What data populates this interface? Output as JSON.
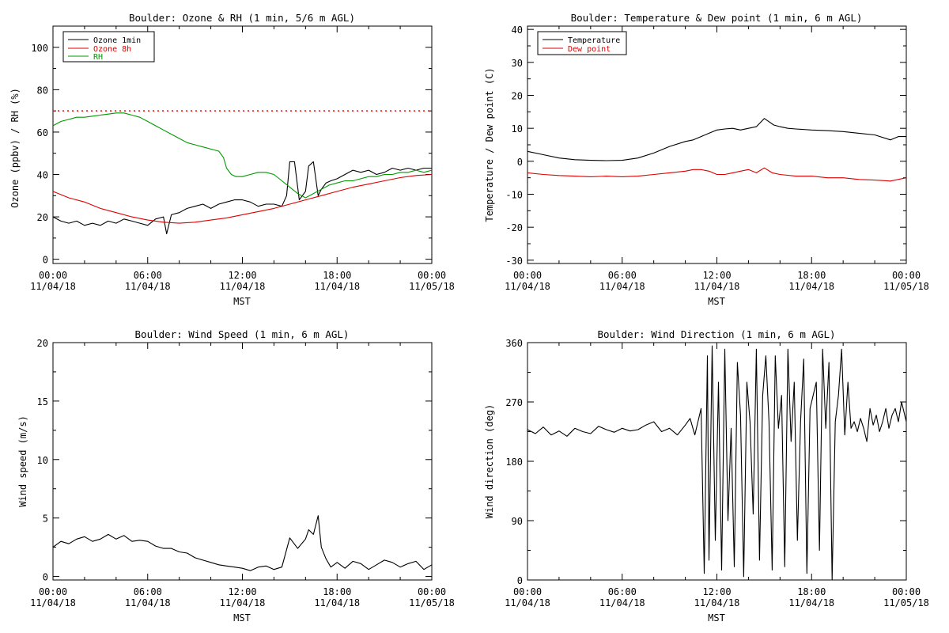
{
  "chart_data": [
    {
      "type": "line",
      "title": "Boulder: Ozone & RH (1 min, 5/6 m AGL)",
      "xlabel": "MST",
      "ylabel": "Ozone (ppbv) / RH (%)",
      "xlim": [
        0,
        24
      ],
      "ylim": [
        -2,
        110
      ],
      "yticks": [
        0,
        20,
        40,
        60,
        80,
        100
      ],
      "xticks": [
        0,
        6,
        12,
        18,
        24
      ],
      "xtick_labels": [
        [
          "00:00",
          "11/04/18"
        ],
        [
          "06:00",
          "11/04/18"
        ],
        [
          "12:00",
          "11/04/18"
        ],
        [
          "18:00",
          "11/04/18"
        ],
        [
          "00:00",
          "11/05/18"
        ]
      ],
      "legend": "top-left",
      "reference_line": {
        "y": 70,
        "color": "#ff0000",
        "style": "dotted"
      },
      "series": [
        {
          "name": "Ozone 1min",
          "color": "#000000",
          "x": [
            0,
            0.5,
            1,
            1.5,
            2,
            2.5,
            3,
            3.5,
            4,
            4.5,
            5,
            5.5,
            6,
            6.5,
            7,
            7.2,
            7.5,
            8,
            8.5,
            9,
            9.5,
            10,
            10.5,
            11,
            11.5,
            12,
            12.5,
            13,
            13.5,
            14,
            14.5,
            14.8,
            15,
            15.3,
            15.6,
            16,
            16.2,
            16.5,
            16.8,
            17,
            17.3,
            17.6,
            18,
            18.5,
            19,
            19.5,
            20,
            20.5,
            21,
            21.5,
            22,
            22.5,
            23,
            23.5,
            24
          ],
          "y": [
            20,
            18,
            17,
            18,
            16,
            17,
            16,
            18,
            17,
            19,
            18,
            17,
            16,
            19,
            20,
            12,
            21,
            22,
            24,
            25,
            26,
            24,
            26,
            27,
            28,
            28,
            27,
            25,
            26,
            26,
            25,
            30,
            46,
            46,
            28,
            32,
            44,
            46,
            30,
            33,
            36,
            37,
            38,
            40,
            42,
            41,
            42,
            40,
            41,
            43,
            42,
            43,
            42,
            43,
            43
          ]
        },
        {
          "name": "Ozone 8h",
          "color": "#dd0000",
          "x": [
            0,
            1,
            2,
            3,
            4,
            5,
            6,
            7,
            8,
            9,
            10,
            11,
            12,
            13,
            14,
            15,
            16,
            17,
            18,
            19,
            20,
            21,
            22,
            23,
            24
          ],
          "y": [
            32,
            29,
            27,
            24,
            22,
            20,
            18.5,
            17.5,
            17,
            17.5,
            18.5,
            19.5,
            21,
            22.5,
            24,
            26,
            28,
            30,
            32,
            34,
            35.5,
            37,
            38.5,
            39.5,
            40
          ]
        },
        {
          "name": "RH",
          "color": "#009900",
          "x": [
            0,
            0.5,
            1,
            1.5,
            2,
            2.5,
            3,
            3.5,
            4,
            4.5,
            5,
            5.5,
            6,
            6.5,
            7,
            7.5,
            8,
            8.5,
            9,
            9.5,
            10,
            10.5,
            10.8,
            11,
            11.3,
            11.6,
            12,
            12.5,
            13,
            13.5,
            14,
            14.5,
            15,
            15.5,
            16,
            16.5,
            17,
            17.5,
            18,
            18.5,
            19,
            19.5,
            20,
            20.5,
            21,
            21.5,
            22,
            22.5,
            23,
            23.5,
            24
          ],
          "y": [
            63,
            65,
            66,
            67,
            67,
            67.5,
            68,
            68.5,
            69,
            69,
            68,
            67,
            65,
            63,
            61,
            59,
            57,
            55,
            54,
            53,
            52,
            51,
            48,
            43,
            40,
            39,
            39,
            40,
            41,
            41,
            40,
            37,
            34,
            31,
            29,
            31,
            33,
            35,
            36,
            37,
            37,
            38,
            39,
            39,
            40,
            40,
            41,
            41,
            42,
            41,
            42
          ]
        }
      ]
    },
    {
      "type": "line",
      "title": "Boulder: Temperature & Dew point (1 min, 6 m AGL)",
      "xlabel": "MST",
      "ylabel": "Temperature / Dew point (C)",
      "xlim": [
        0,
        24
      ],
      "ylim": [
        -31,
        41
      ],
      "yticks": [
        -30,
        -20,
        -10,
        0,
        10,
        20,
        30,
        40
      ],
      "xticks": [
        0,
        6,
        12,
        18,
        24
      ],
      "xtick_labels": [
        [
          "00:00",
          "11/04/18"
        ],
        [
          "06:00",
          "11/04/18"
        ],
        [
          "12:00",
          "11/04/18"
        ],
        [
          "18:00",
          "11/04/18"
        ],
        [
          "00:00",
          "11/05/18"
        ]
      ],
      "legend": "top-left",
      "series": [
        {
          "name": "Temperature",
          "color": "#000000",
          "x": [
            0,
            1,
            2,
            3,
            4,
            5,
            6,
            7,
            8,
            9,
            10,
            10.5,
            11,
            11.5,
            12,
            12.5,
            13,
            13.5,
            14,
            14.5,
            15,
            15.3,
            15.6,
            16,
            16.5,
            17,
            18,
            19,
            20,
            21,
            22,
            23,
            23.5,
            24
          ],
          "y": [
            3,
            2,
            1,
            0.5,
            0.3,
            0.2,
            0.3,
            1,
            2.5,
            4.5,
            6,
            6.5,
            7.5,
            8.5,
            9.5,
            9.8,
            10,
            9.5,
            10,
            10.5,
            13,
            12,
            11,
            10.5,
            10,
            9.8,
            9.5,
            9.3,
            9,
            8.5,
            8,
            6.5,
            7.5,
            7.5
          ]
        },
        {
          "name": "Dew point",
          "color": "#dd0000",
          "x": [
            0,
            1,
            2,
            3,
            4,
            5,
            6,
            7,
            8,
            9,
            10,
            10.5,
            11,
            11.5,
            12,
            12.5,
            13,
            13.5,
            14,
            14.5,
            15,
            15.5,
            16,
            17,
            18,
            19,
            20,
            21,
            22,
            23,
            24
          ],
          "y": [
            -3.5,
            -4,
            -4.3,
            -4.5,
            -4.7,
            -4.5,
            -4.7,
            -4.5,
            -4,
            -3.5,
            -3,
            -2.5,
            -2.5,
            -3,
            -4,
            -4,
            -3.5,
            -3,
            -2.5,
            -3.5,
            -2,
            -3.5,
            -4,
            -4.5,
            -4.5,
            -5,
            -5,
            -5.5,
            -5.7,
            -6,
            -5
          ]
        }
      ]
    },
    {
      "type": "line",
      "title": "Boulder: Wind Speed (1 min, 6 m AGL)",
      "xlabel": "MST",
      "ylabel": "Wind speed (m/s)",
      "xlim": [
        0,
        24
      ],
      "ylim": [
        -0.3,
        20
      ],
      "yticks": [
        0,
        5,
        10,
        15,
        20
      ],
      "xticks": [
        0,
        6,
        12,
        18,
        24
      ],
      "xtick_labels": [
        [
          "00:00",
          "11/04/18"
        ],
        [
          "06:00",
          "11/04/18"
        ],
        [
          "12:00",
          "11/04/18"
        ],
        [
          "18:00",
          "11/04/18"
        ],
        [
          "00:00",
          "11/05/18"
        ]
      ],
      "series": [
        {
          "name": "",
          "color": "#000000",
          "x": [
            0,
            0.5,
            1,
            1.5,
            2,
            2.5,
            3,
            3.5,
            4,
            4.5,
            5,
            5.5,
            6,
            6.5,
            7,
            7.5,
            8,
            8.5,
            9,
            9.5,
            10,
            10.5,
            11,
            11.5,
            12,
            12.5,
            13,
            13.5,
            14,
            14.5,
            15,
            15.5,
            16,
            16.2,
            16.5,
            16.8,
            17,
            17.3,
            17.6,
            18,
            18.5,
            19,
            19.5,
            20,
            20.5,
            21,
            21.5,
            22,
            22.5,
            23,
            23.5,
            24
          ],
          "y": [
            2.5,
            3,
            2.8,
            3.2,
            3.4,
            3,
            3.2,
            3.6,
            3.2,
            3.5,
            3,
            3.1,
            3,
            2.6,
            2.4,
            2.4,
            2.1,
            2,
            1.6,
            1.4,
            1.2,
            1,
            0.9,
            0.8,
            0.7,
            0.5,
            0.8,
            0.9,
            0.6,
            0.8,
            3.3,
            2.4,
            3.2,
            4,
            3.6,
            5.2,
            2.5,
            1.5,
            0.8,
            1.2,
            0.7,
            1.3,
            1.1,
            0.6,
            1,
            1.4,
            1.2,
            0.8,
            1.1,
            1.3,
            0.6,
            1.0
          ]
        }
      ]
    },
    {
      "type": "line",
      "title": "Boulder: Wind Direction (1 min, 6 m AGL)",
      "xlabel": "MST",
      "ylabel": "Wind direction (deg)",
      "xlim": [
        0,
        24
      ],
      "ylim": [
        0,
        360
      ],
      "yticks": [
        0,
        90,
        180,
        270,
        360
      ],
      "xticks": [
        0,
        6,
        12,
        18,
        24
      ],
      "xtick_labels": [
        [
          "00:00",
          "11/04/18"
        ],
        [
          "06:00",
          "11/04/18"
        ],
        [
          "12:00",
          "11/04/18"
        ],
        [
          "18:00",
          "11/04/18"
        ],
        [
          "00:00",
          "11/05/18"
        ]
      ],
      "series": [
        {
          "name": "",
          "color": "#000000",
          "x": [
            0,
            0.5,
            1,
            1.5,
            2,
            2.5,
            3,
            3.5,
            4,
            4.5,
            5,
            5.5,
            6,
            6.5,
            7,
            7.5,
            8,
            8.5,
            9,
            9.5,
            10,
            10.3,
            10.6,
            11,
            11.2,
            11.4,
            11.5,
            11.7,
            11.9,
            12.1,
            12.3,
            12.5,
            12.7,
            12.9,
            13.1,
            13.3,
            13.5,
            13.7,
            13.9,
            14.1,
            14.3,
            14.5,
            14.7,
            14.9,
            15.1,
            15.3,
            15.5,
            15.7,
            15.9,
            16.1,
            16.3,
            16.5,
            16.7,
            16.9,
            17.1,
            17.3,
            17.5,
            17.7,
            17.9,
            18.1,
            18.3,
            18.5,
            18.7,
            18.9,
            19.1,
            19.3,
            19.5,
            19.7,
            19.9,
            20.1,
            20.3,
            20.5,
            20.7,
            20.9,
            21.1,
            21.3,
            21.5,
            21.7,
            21.9,
            22.1,
            22.3,
            22.5,
            22.7,
            22.9,
            23.1,
            23.3,
            23.5,
            23.7,
            24
          ],
          "y": [
            228,
            222,
            232,
            220,
            226,
            218,
            230,
            225,
            222,
            233,
            228,
            224,
            230,
            226,
            228,
            235,
            240,
            225,
            230,
            220,
            235,
            245,
            220,
            260,
            10,
            340,
            30,
            355,
            60,
            300,
            15,
            350,
            90,
            230,
            20,
            330,
            250,
            5,
            300,
            240,
            100,
            350,
            30,
            280,
            340,
            240,
            15,
            340,
            230,
            280,
            20,
            350,
            210,
            300,
            60,
            240,
            335,
            10,
            260,
            280,
            300,
            45,
            350,
            230,
            330,
            0,
            240,
            280,
            350,
            220,
            300,
            230,
            240,
            225,
            245,
            230,
            210,
            260,
            235,
            250,
            225,
            240,
            260,
            230,
            250,
            260,
            240,
            270,
            240
          ]
        }
      ]
    }
  ]
}
